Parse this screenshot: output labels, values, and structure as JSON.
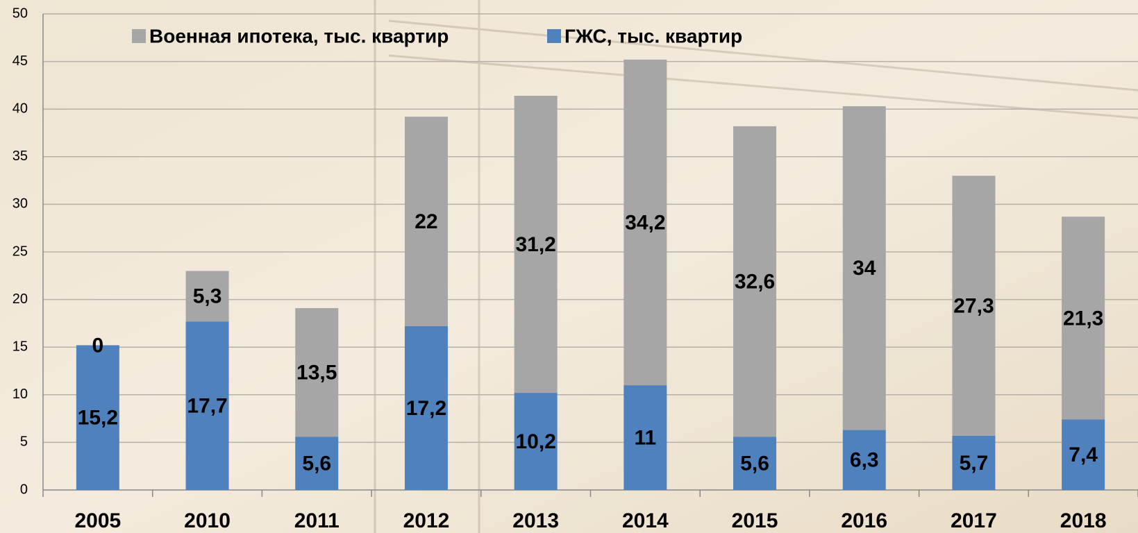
{
  "chart_data": {
    "type": "stacked-bar",
    "categories": [
      "2005",
      "2010",
      "2011",
      "2012",
      "2013",
      "2014",
      "2015",
      "2016",
      "2017",
      "2018"
    ],
    "series": [
      {
        "name": "ГЖС, тыс. квартир",
        "color": "#4f81bd",
        "values": [
          15.2,
          17.7,
          5.6,
          17.2,
          10.2,
          11,
          5.6,
          6.3,
          5.7,
          7.4
        ],
        "value_labels": [
          "15,2",
          "17,7",
          "5,6",
          "17,2",
          "10,2",
          "11",
          "5,6",
          "6,3",
          "5,7",
          "7,4"
        ]
      },
      {
        "name": "Военная ипотека, тыс. квартир",
        "color": "#a6a6a6",
        "values": [
          0,
          5.3,
          13.5,
          22,
          31.2,
          34.2,
          32.6,
          34,
          27.3,
          21.3
        ],
        "value_labels": [
          "0",
          "5,3",
          "13,5",
          "22",
          "31,2",
          "34,2",
          "32,6",
          "34",
          "27,3",
          "21,3"
        ]
      }
    ],
    "ylim": [
      0,
      50
    ],
    "yticks": [
      0,
      5,
      10,
      15,
      20,
      25,
      30,
      35,
      40,
      45,
      50
    ],
    "grid": true
  }
}
